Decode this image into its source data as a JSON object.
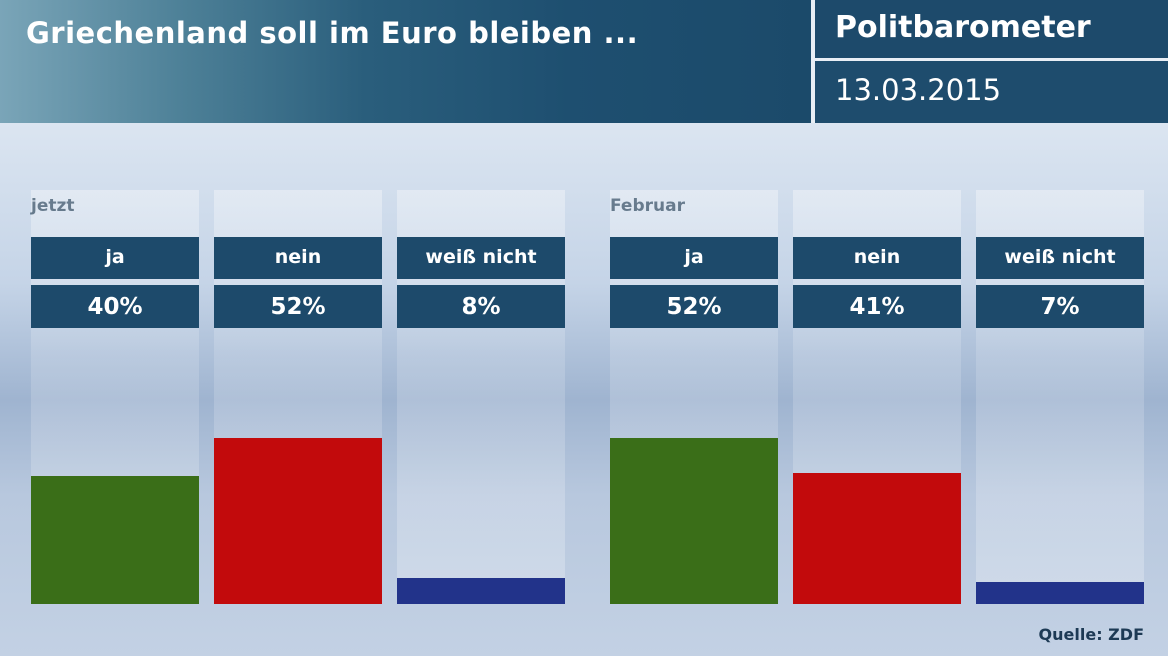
{
  "header": {
    "title": "Griechenland soll im Euro bleiben ...",
    "brand": "Politbarometer",
    "date": "13.03.2015"
  },
  "chart_data": {
    "type": "bar",
    "title": "Griechenland soll im Euro bleiben ...",
    "groups": [
      {
        "label": "jetzt",
        "items": [
          {
            "category": "ja",
            "value": 40,
            "display": "40%",
            "color": "#3a6e18"
          },
          {
            "category": "nein",
            "value": 52,
            "display": "52%",
            "color": "#c20a0c"
          },
          {
            "category": "weiß nicht",
            "value": 8,
            "display": "8%",
            "color": "#22338a"
          }
        ]
      },
      {
        "label": "Februar",
        "items": [
          {
            "category": "ja",
            "value": 52,
            "display": "52%",
            "color": "#3a6e18"
          },
          {
            "category": "nein",
            "value": 41,
            "display": "41%",
            "color": "#c20a0c"
          },
          {
            "category": "weiß nicht",
            "value": 7,
            "display": "7%",
            "color": "#22338a"
          }
        ]
      }
    ],
    "unit": "%"
  },
  "source": "Quelle: ZDF"
}
